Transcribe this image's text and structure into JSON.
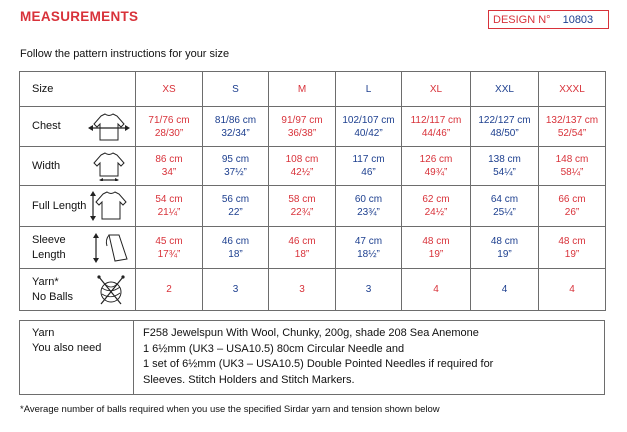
{
  "title": "MEASUREMENTS",
  "design": {
    "label": "DESIGN N°",
    "number": "10803"
  },
  "subtitle": "Follow the pattern instructions for your size",
  "table": {
    "size_label": "Size",
    "sizes": [
      "XS",
      "S",
      "M",
      "L",
      "XL",
      "XXL",
      "XXXL"
    ],
    "size_colors": [
      "red",
      "blue",
      "red",
      "blue",
      "red",
      "blue",
      "red"
    ],
    "rows": [
      {
        "label": [
          "Chest"
        ],
        "icon": "sweater-chest-icon",
        "cm": [
          "71/76 cm",
          "81/86 cm",
          "91/97 cm",
          "102/107 cm",
          "112/117 cm",
          "122/127 cm",
          "132/137 cm"
        ],
        "in": [
          "28/30”",
          "32/34”",
          "36/38”",
          "40/42”",
          "44/46”",
          "48/50”",
          "52/54”"
        ]
      },
      {
        "label": [
          "Width"
        ],
        "icon": "sweater-width-icon",
        "cm": [
          "86 cm",
          "95 cm",
          "108 cm",
          "117 cm",
          "126 cm",
          "138 cm",
          "148 cm"
        ],
        "in": [
          "34”",
          "37½”",
          "42½”",
          "46”",
          "49¾”",
          "54¼”",
          "58¼”"
        ]
      },
      {
        "label": [
          "Full Length"
        ],
        "icon": "sweater-length-icon",
        "cm": [
          "54 cm",
          "56 cm",
          "58 cm",
          "60 cm",
          "62 cm",
          "64 cm",
          "66 cm"
        ],
        "in": [
          "21¼”",
          "22”",
          "22¾”",
          "23¾”",
          "24½”",
          "25¼”",
          "26”"
        ]
      },
      {
        "label": [
          "Sleeve",
          "Length"
        ],
        "icon": "sleeve-length-icon",
        "cm": [
          "45 cm",
          "46 cm",
          "46 cm",
          "47 cm",
          "48 cm",
          "48 cm",
          "48 cm"
        ],
        "in": [
          "17¾”",
          "18”",
          "18”",
          "18½”",
          "19”",
          "19”",
          "19”"
        ]
      }
    ],
    "yarn": {
      "label": [
        "Yarn*",
        "No Balls"
      ],
      "icon": "yarn-ball-needles-icon",
      "values": [
        "2",
        "3",
        "3",
        "3",
        "4",
        "4",
        "4"
      ]
    }
  },
  "info": {
    "left": [
      "Yarn",
      "You also need"
    ],
    "right": [
      "F258 Jewelspun With Wool, Chunky, 200g, shade 208 Sea Anemone",
      "1 6½mm (UK3 – USA10.5) 80cm Circular Needle and",
      "1 set of 6½mm (UK3 – USA10.5) Double Pointed Needles if required for",
      "Sleeves. Stitch Holders and Stitch Markers."
    ]
  },
  "footnote": "*Average number of balls required when you use the specified Sirdar yarn and tension shown below",
  "colors": {
    "red": "#d8323a",
    "blue": "#1d3f8f",
    "border": "#6d6d6d"
  }
}
